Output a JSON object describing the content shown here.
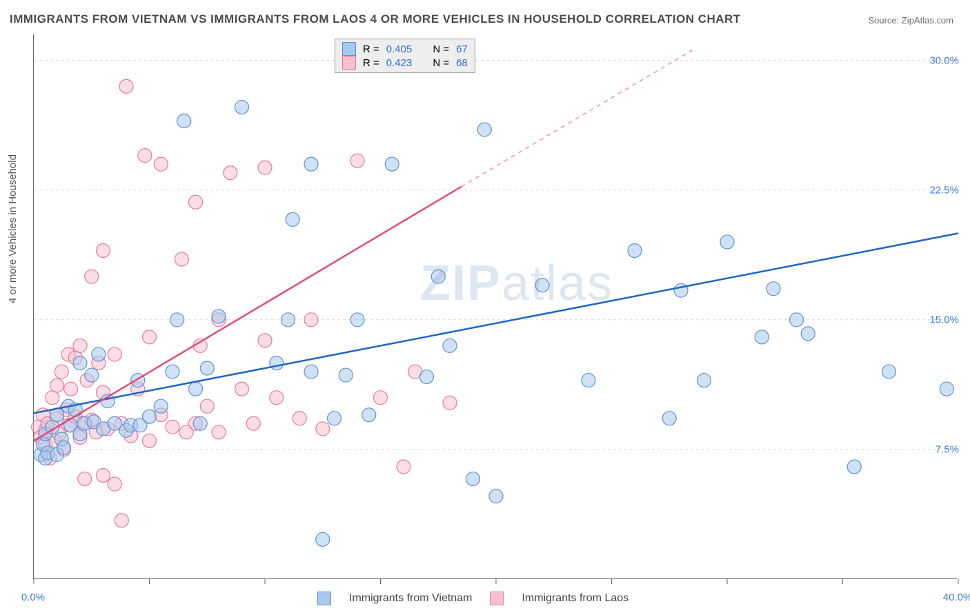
{
  "title": "IMMIGRANTS FROM VIETNAM VS IMMIGRANTS FROM LAOS 4 OR MORE VEHICLES IN HOUSEHOLD CORRELATION CHART",
  "source_prefix": "Source: ",
  "source_name": "ZipAtlas.com",
  "ylabel": "4 or more Vehicles in Household",
  "watermark": "ZIPatlas",
  "chart": {
    "type": "scatter",
    "xlim": [
      0,
      40
    ],
    "ylim": [
      0,
      31.5
    ],
    "x_ticks_major": [
      0,
      5,
      10,
      15,
      20,
      25,
      30,
      35,
      40
    ],
    "x_tick_labels": {
      "0": "0.0%",
      "40": "40.0%"
    },
    "y_gridlines": [
      7.5,
      15.0,
      22.5,
      30.0
    ],
    "y_tick_labels": [
      "7.5%",
      "15.0%",
      "22.5%",
      "30.0%"
    ],
    "grid_color": "#d9d9d9",
    "background_color": "#ffffff",
    "point_radius": 10,
    "point_opacity": 0.55,
    "series": [
      {
        "name": "Immigrants from Vietnam",
        "fill": "#a9c8ef",
        "stroke": "#5a93d6",
        "line_color": "#1f66c7",
        "line_width": 2.5,
        "regression": {
          "x1": 0,
          "y1": 9.6,
          "x2": 40,
          "y2": 20.0
        },
        "R": "0.405",
        "N": "67",
        "points": [
          [
            0.3,
            7.2
          ],
          [
            0.4,
            7.8
          ],
          [
            0.5,
            7.0
          ],
          [
            0.5,
            8.4
          ],
          [
            0.6,
            7.3
          ],
          [
            0.8,
            8.8
          ],
          [
            1.0,
            7.2
          ],
          [
            1.0,
            9.5
          ],
          [
            1.2,
            8.1
          ],
          [
            1.3,
            7.6
          ],
          [
            1.5,
            10.0
          ],
          [
            1.6,
            8.9
          ],
          [
            1.8,
            9.8
          ],
          [
            2.0,
            8.4
          ],
          [
            2.0,
            12.5
          ],
          [
            2.2,
            9.0
          ],
          [
            2.5,
            11.8
          ],
          [
            2.6,
            9.1
          ],
          [
            2.8,
            13.0
          ],
          [
            3.0,
            8.7
          ],
          [
            3.2,
            10.3
          ],
          [
            3.5,
            9.0
          ],
          [
            4.0,
            8.6
          ],
          [
            4.2,
            8.9
          ],
          [
            4.5,
            11.5
          ],
          [
            4.6,
            8.9
          ],
          [
            5.0,
            9.4
          ],
          [
            5.5,
            10.0
          ],
          [
            6.0,
            12.0
          ],
          [
            6.2,
            15.0
          ],
          [
            6.5,
            26.5
          ],
          [
            7.0,
            11.0
          ],
          [
            7.2,
            9.0
          ],
          [
            7.5,
            12.2
          ],
          [
            8.0,
            15.2
          ],
          [
            9.0,
            27.3
          ],
          [
            10.5,
            12.5
          ],
          [
            11.0,
            15.0
          ],
          [
            11.2,
            20.8
          ],
          [
            12.0,
            12.0
          ],
          [
            12.0,
            24.0
          ],
          [
            12.5,
            2.3
          ],
          [
            13.0,
            9.3
          ],
          [
            13.5,
            11.8
          ],
          [
            14.0,
            15.0
          ],
          [
            14.5,
            9.5
          ],
          [
            15.5,
            24.0
          ],
          [
            17.0,
            11.7
          ],
          [
            17.5,
            17.5
          ],
          [
            18.0,
            13.5
          ],
          [
            19.0,
            5.8
          ],
          [
            19.5,
            26.0
          ],
          [
            20.0,
            4.8
          ],
          [
            22.0,
            17.0
          ],
          [
            24.0,
            11.5
          ],
          [
            26.0,
            19.0
          ],
          [
            27.5,
            9.3
          ],
          [
            28.0,
            16.7
          ],
          [
            29.0,
            11.5
          ],
          [
            30.0,
            19.5
          ],
          [
            31.5,
            14.0
          ],
          [
            32.0,
            16.8
          ],
          [
            33.0,
            15.0
          ],
          [
            33.5,
            14.2
          ],
          [
            35.5,
            6.5
          ],
          [
            37.0,
            12.0
          ],
          [
            39.5,
            11.0
          ]
        ]
      },
      {
        "name": "Immigrants from Laos",
        "fill": "#f5c1cf",
        "stroke": "#e87a9a",
        "line_color": "#e14b75",
        "line_width": 2.5,
        "dash_color": "#f0a0b8",
        "regression": {
          "x1": 0,
          "y1": 8.0,
          "x2": 18.5,
          "y2": 22.7,
          "x2_dash": 28.5,
          "y2_dash": 30.6
        },
        "R": "0.423",
        "N": "68",
        "points": [
          [
            0.2,
            8.8
          ],
          [
            0.3,
            8.2
          ],
          [
            0.4,
            9.5
          ],
          [
            0.5,
            7.8
          ],
          [
            0.5,
            8.6
          ],
          [
            0.6,
            9.0
          ],
          [
            0.7,
            7.0
          ],
          [
            0.8,
            10.5
          ],
          [
            0.9,
            8.0
          ],
          [
            1.0,
            9.3
          ],
          [
            1.0,
            11.2
          ],
          [
            1.1,
            8.4
          ],
          [
            1.2,
            12.0
          ],
          [
            1.3,
            7.5
          ],
          [
            1.4,
            9.8
          ],
          [
            1.5,
            13.0
          ],
          [
            1.5,
            8.9
          ],
          [
            1.6,
            11.0
          ],
          [
            1.8,
            9.4
          ],
          [
            1.8,
            12.8
          ],
          [
            2.0,
            8.2
          ],
          [
            2.0,
            13.5
          ],
          [
            2.1,
            9.0
          ],
          [
            2.2,
            5.8
          ],
          [
            2.3,
            11.5
          ],
          [
            2.5,
            9.2
          ],
          [
            2.5,
            17.5
          ],
          [
            2.7,
            8.5
          ],
          [
            2.8,
            12.5
          ],
          [
            3.0,
            6.0
          ],
          [
            3.0,
            10.8
          ],
          [
            3.0,
            19.0
          ],
          [
            3.2,
            8.7
          ],
          [
            3.5,
            5.5
          ],
          [
            3.5,
            13.0
          ],
          [
            3.8,
            9.0
          ],
          [
            3.8,
            3.4
          ],
          [
            4.0,
            28.5
          ],
          [
            4.2,
            8.3
          ],
          [
            4.5,
            11.0
          ],
          [
            4.8,
            24.5
          ],
          [
            5.0,
            8.0
          ],
          [
            5.0,
            14.0
          ],
          [
            5.5,
            9.5
          ],
          [
            5.5,
            24.0
          ],
          [
            6.0,
            8.8
          ],
          [
            6.4,
            18.5
          ],
          [
            6.6,
            8.5
          ],
          [
            7.0,
            9.0
          ],
          [
            7.0,
            21.8
          ],
          [
            7.2,
            13.5
          ],
          [
            7.5,
            10.0
          ],
          [
            8.0,
            8.5
          ],
          [
            8.0,
            15.0
          ],
          [
            8.5,
            23.5
          ],
          [
            9.0,
            11.0
          ],
          [
            9.5,
            9.0
          ],
          [
            10.0,
            13.8
          ],
          [
            10.0,
            23.8
          ],
          [
            10.5,
            10.5
          ],
          [
            11.5,
            9.3
          ],
          [
            12.0,
            15.0
          ],
          [
            12.5,
            8.7
          ],
          [
            14.0,
            24.2
          ],
          [
            15.0,
            10.5
          ],
          [
            16.0,
            6.5
          ],
          [
            16.5,
            12.0
          ],
          [
            18.0,
            10.2
          ]
        ]
      }
    ]
  },
  "legend_top": {
    "r_label": "R =",
    "n_label": "N ="
  },
  "legend_bottom": {
    "items": [
      "Immigrants from Vietnam",
      "Immigrants from Laos"
    ]
  }
}
